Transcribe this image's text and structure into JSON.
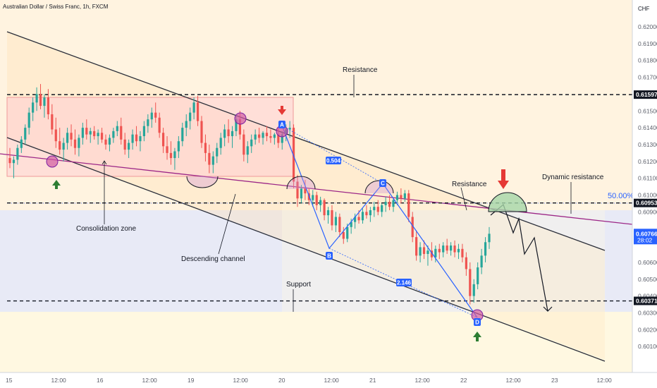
{
  "header": {
    "title": "Australian Dollar / Swiss Franc, 1h, FXCM",
    "currency": "CHF"
  },
  "chart_data": {
    "type": "candlestick",
    "title": "Australian Dollar / Swiss Franc, 1h, FXCM",
    "ylim": [
      0.6001,
      0.6209
    ],
    "y_ticks": [
      "0.62000",
      "0.61900",
      "0.61800",
      "0.61700",
      "0.61500",
      "0.61400",
      "0.61300",
      "0.61200",
      "0.61100",
      "0.61000",
      "0.60900",
      "0.60600",
      "0.60500",
      "0.60400",
      "0.60300",
      "0.60200",
      "0.60100"
    ],
    "x_ticks": [
      "15",
      "12:00",
      "16",
      "12:00",
      "19",
      "12:00",
      "20",
      "12:00",
      "21",
      "12:00",
      "22",
      "12:00",
      "23",
      "12:00"
    ],
    "levels": [
      {
        "label": "0.61597",
        "value": 0.61597,
        "name": "Resistance",
        "color": "#131722"
      },
      {
        "label": "0.60953",
        "value": 0.60953,
        "name": "Resistance",
        "color": "#131722"
      },
      {
        "label": "0.60371",
        "value": 0.60371,
        "name": "Support",
        "color": "#131722"
      }
    ],
    "current_price": {
      "label": "0.60766",
      "value": 0.60766,
      "countdown": "28:02",
      "color": "#2962ff"
    },
    "fib_label": "50.00%",
    "annotations": [
      "Resistance",
      "Resistance",
      "Dynamic resistance",
      "Consolidation zone",
      "Descending channel",
      "Support"
    ],
    "pattern_points": [
      {
        "label": "A",
        "value": 0.6141
      },
      {
        "label": "B",
        "value": 0.6072
      },
      {
        "label": "C",
        "value": 0.6102
      },
      {
        "label": "D",
        "value": 0.6035
      }
    ],
    "pattern_ratios": [
      "0.504",
      "2.146"
    ],
    "candles": [
      [
        0.6122,
        0.6128,
        0.6116,
        0.6119
      ],
      [
        0.6119,
        0.6123,
        0.611,
        0.6121
      ],
      [
        0.6121,
        0.613,
        0.6118,
        0.6128
      ],
      [
        0.6128,
        0.6135,
        0.6125,
        0.6133
      ],
      [
        0.6133,
        0.6142,
        0.613,
        0.614
      ],
      [
        0.614,
        0.6152,
        0.6136,
        0.6149
      ],
      [
        0.6149,
        0.6158,
        0.6144,
        0.6155
      ],
      [
        0.6155,
        0.6164,
        0.615,
        0.616
      ],
      [
        0.616,
        0.6166,
        0.6151,
        0.6153
      ],
      [
        0.6153,
        0.616,
        0.6146,
        0.6158
      ],
      [
        0.6158,
        0.6163,
        0.6145,
        0.6148
      ],
      [
        0.6148,
        0.6154,
        0.6136,
        0.6139
      ],
      [
        0.6139,
        0.6146,
        0.6128,
        0.6132
      ],
      [
        0.6132,
        0.614,
        0.6124,
        0.6127
      ],
      [
        0.6127,
        0.6134,
        0.612,
        0.6131
      ],
      [
        0.6131,
        0.614,
        0.6127,
        0.6137
      ],
      [
        0.6137,
        0.6142,
        0.6129,
        0.6133
      ],
      [
        0.6133,
        0.6139,
        0.6124,
        0.6128
      ],
      [
        0.6128,
        0.6136,
        0.6123,
        0.6134
      ],
      [
        0.6134,
        0.6143,
        0.613,
        0.614
      ],
      [
        0.614,
        0.6145,
        0.6133,
        0.6136
      ],
      [
        0.6136,
        0.614,
        0.6131,
        0.6138
      ],
      [
        0.6138,
        0.6141,
        0.6133,
        0.6135
      ],
      [
        0.6135,
        0.6139,
        0.613,
        0.6137
      ],
      [
        0.6137,
        0.614,
        0.6131,
        0.6133
      ],
      [
        0.6133,
        0.6136,
        0.6127,
        0.613
      ],
      [
        0.613,
        0.6136,
        0.6126,
        0.6134
      ],
      [
        0.6134,
        0.614,
        0.6131,
        0.6138
      ],
      [
        0.6138,
        0.6144,
        0.6135,
        0.6141
      ],
      [
        0.6141,
        0.6146,
        0.613,
        0.6133
      ],
      [
        0.6133,
        0.6137,
        0.6124,
        0.6127
      ],
      [
        0.6127,
        0.6133,
        0.6122,
        0.6131
      ],
      [
        0.6131,
        0.6139,
        0.6127,
        0.6136
      ],
      [
        0.6136,
        0.6141,
        0.6129,
        0.6132
      ],
      [
        0.6132,
        0.6138,
        0.6126,
        0.6135
      ],
      [
        0.6135,
        0.6144,
        0.6132,
        0.6141
      ],
      [
        0.6141,
        0.6148,
        0.6137,
        0.6145
      ],
      [
        0.6145,
        0.6152,
        0.614,
        0.6149
      ],
      [
        0.6149,
        0.6155,
        0.6143,
        0.6146
      ],
      [
        0.6146,
        0.6149,
        0.6134,
        0.6137
      ],
      [
        0.6137,
        0.614,
        0.6125,
        0.6129
      ],
      [
        0.6129,
        0.6135,
        0.6121,
        0.6125
      ],
      [
        0.6125,
        0.6132,
        0.6118,
        0.6122
      ],
      [
        0.6122,
        0.6128,
        0.6115,
        0.6126
      ],
      [
        0.6126,
        0.6135,
        0.6122,
        0.6132
      ],
      [
        0.6132,
        0.6143,
        0.6129,
        0.614
      ],
      [
        0.614,
        0.6148,
        0.6135,
        0.6144
      ],
      [
        0.6144,
        0.6152,
        0.6139,
        0.6149
      ],
      [
        0.6149,
        0.6158,
        0.6145,
        0.6155
      ],
      [
        0.6155,
        0.6159,
        0.6141,
        0.6144
      ],
      [
        0.6144,
        0.6147,
        0.6128,
        0.6131
      ],
      [
        0.6131,
        0.6136,
        0.612,
        0.6125
      ],
      [
        0.6125,
        0.613,
        0.6113,
        0.6118
      ],
      [
        0.6118,
        0.6126,
        0.6113,
        0.6123
      ],
      [
        0.6123,
        0.6131,
        0.6119,
        0.6128
      ],
      [
        0.6128,
        0.6137,
        0.6124,
        0.6134
      ],
      [
        0.6134,
        0.6142,
        0.6129,
        0.6139
      ],
      [
        0.6139,
        0.6145,
        0.6131,
        0.6135
      ],
      [
        0.6135,
        0.6141,
        0.6128,
        0.6138
      ],
      [
        0.6138,
        0.6148,
        0.6135,
        0.6145
      ],
      [
        0.6145,
        0.615,
        0.6133,
        0.6136
      ],
      [
        0.6136,
        0.6139,
        0.612,
        0.6124
      ],
      [
        0.6124,
        0.6132,
        0.6119,
        0.6129
      ],
      [
        0.6129,
        0.6136,
        0.6125,
        0.6133
      ],
      [
        0.6133,
        0.6139,
        0.613,
        0.6136
      ],
      [
        0.6136,
        0.614,
        0.6131,
        0.6134
      ],
      [
        0.6134,
        0.6138,
        0.613,
        0.6137
      ],
      [
        0.6137,
        0.6141,
        0.6132,
        0.6135
      ],
      [
        0.6135,
        0.6139,
        0.6131,
        0.6134
      ],
      [
        0.6134,
        0.6137,
        0.613,
        0.6136
      ],
      [
        0.6136,
        0.614,
        0.6128,
        0.6131
      ],
      [
        0.6131,
        0.6138,
        0.6127,
        0.6136
      ],
      [
        0.6136,
        0.6142,
        0.6132,
        0.6139
      ],
      [
        0.6139,
        0.6144,
        0.6134,
        0.614
      ],
      [
        0.614,
        0.6142,
        0.6104,
        0.6108
      ],
      [
        0.6108,
        0.6112,
        0.6093,
        0.6098
      ],
      [
        0.6098,
        0.6106,
        0.6095,
        0.6104
      ],
      [
        0.6104,
        0.6109,
        0.6097,
        0.6101
      ],
      [
        0.6101,
        0.6104,
        0.6094,
        0.6097
      ],
      [
        0.6097,
        0.6103,
        0.6093,
        0.61
      ],
      [
        0.61,
        0.6102,
        0.6091,
        0.6094
      ],
      [
        0.6094,
        0.6099,
        0.609,
        0.6097
      ],
      [
        0.6097,
        0.6098,
        0.6085,
        0.6088
      ],
      [
        0.6088,
        0.6093,
        0.6083,
        0.6091
      ],
      [
        0.6091,
        0.6094,
        0.6079,
        0.6082
      ],
      [
        0.6082,
        0.609,
        0.6078,
        0.6087
      ],
      [
        0.6087,
        0.6089,
        0.6075,
        0.6078
      ],
      [
        0.6078,
        0.6081,
        0.6071,
        0.6074
      ],
      [
        0.6074,
        0.6083,
        0.6072,
        0.6081
      ],
      [
        0.6081,
        0.6086,
        0.6077,
        0.6084
      ],
      [
        0.6084,
        0.6089,
        0.608,
        0.6087
      ],
      [
        0.6087,
        0.6091,
        0.6083,
        0.6085
      ],
      [
        0.6085,
        0.6092,
        0.6083,
        0.609
      ],
      [
        0.609,
        0.6094,
        0.6086,
        0.6088
      ],
      [
        0.6088,
        0.6093,
        0.6084,
        0.6091
      ],
      [
        0.6091,
        0.6096,
        0.6087,
        0.6093
      ],
      [
        0.6093,
        0.6097,
        0.6088,
        0.609
      ],
      [
        0.609,
        0.6095,
        0.6087,
        0.6094
      ],
      [
        0.6094,
        0.6099,
        0.609,
        0.6096
      ],
      [
        0.6096,
        0.61,
        0.6091,
        0.6093
      ],
      [
        0.6093,
        0.6098,
        0.609,
        0.6097
      ],
      [
        0.6097,
        0.6102,
        0.6094,
        0.61
      ],
      [
        0.61,
        0.6104,
        0.6095,
        0.6098
      ],
      [
        0.6098,
        0.6103,
        0.6096,
        0.6101
      ],
      [
        0.6101,
        0.6103,
        0.6084,
        0.6087
      ],
      [
        0.6087,
        0.609,
        0.6072,
        0.6075
      ],
      [
        0.6075,
        0.6079,
        0.6061,
        0.6064
      ],
      [
        0.6064,
        0.6072,
        0.606,
        0.6069
      ],
      [
        0.6069,
        0.6073,
        0.6062,
        0.6065
      ],
      [
        0.6065,
        0.607,
        0.6058,
        0.6067
      ],
      [
        0.6067,
        0.6072,
        0.6061,
        0.6063
      ],
      [
        0.6063,
        0.607,
        0.606,
        0.6068
      ],
      [
        0.6068,
        0.6071,
        0.6062,
        0.6066
      ],
      [
        0.6066,
        0.6072,
        0.6063,
        0.607
      ],
      [
        0.607,
        0.6074,
        0.6065,
        0.6067
      ],
      [
        0.6067,
        0.6072,
        0.6064,
        0.607
      ],
      [
        0.607,
        0.6073,
        0.6063,
        0.6066
      ],
      [
        0.6066,
        0.6071,
        0.6062,
        0.6068
      ],
      [
        0.6068,
        0.6071,
        0.606,
        0.6063
      ],
      [
        0.6063,
        0.6066,
        0.6052,
        0.6056
      ],
      [
        0.6056,
        0.606,
        0.6035,
        0.604
      ],
      [
        0.604,
        0.605,
        0.6036,
        0.6047
      ],
      [
        0.6047,
        0.606,
        0.6044,
        0.6057
      ],
      [
        0.6057,
        0.6068,
        0.6053,
        0.6064
      ],
      [
        0.6064,
        0.6075,
        0.606,
        0.6072
      ],
      [
        0.6072,
        0.6081,
        0.6068,
        0.6077
      ]
    ]
  }
}
